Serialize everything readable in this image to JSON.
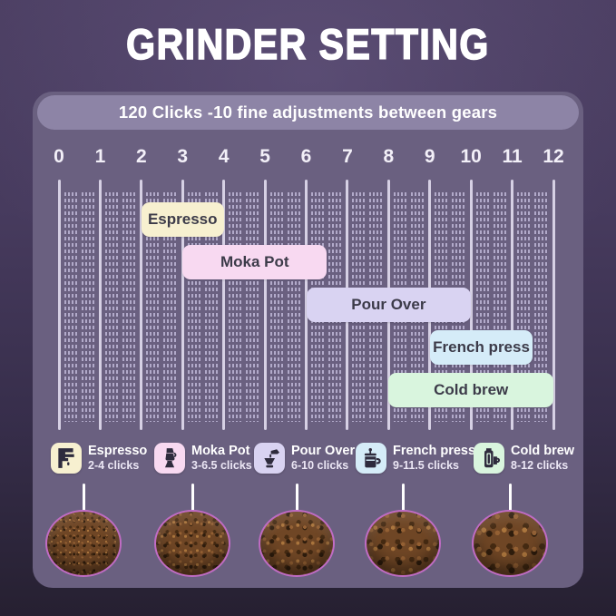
{
  "title": "GRINDER SETTING",
  "banner": "120 Clicks -10 fine adjustments between gears",
  "colors": {
    "background_top": "#4c3f63",
    "background_bottom": "#262031",
    "panel": "#6a6080",
    "pill": "#8d84a6",
    "tick_major": "#d6d0e4",
    "tick_fine": "#b2aaca",
    "band_text": "#3c3b49",
    "legend_text": "#ffffff",
    "circle_border": "#c06cc4"
  },
  "chart_data": {
    "type": "bar",
    "variant": "horizontal-range-bands",
    "title": "GRINDER SETTING",
    "subtitle": "120 Clicks -10 fine adjustments between gears",
    "xlim": [
      0,
      12
    ],
    "axis_ticks": [
      0,
      1,
      2,
      3,
      4,
      5,
      6,
      7,
      8,
      9,
      10,
      11,
      12
    ],
    "fine_tick_clusters_per_gear": 2,
    "fine_ticks_per_cluster": 4,
    "series": [
      {
        "name": "Espresso",
        "start": 2,
        "end": 4,
        "range_label": "2-4 clicks",
        "color": "#f7f0d0"
      },
      {
        "name": "Moka Pot",
        "start": 3,
        "end": 6.5,
        "range_label": "3-6.5 clicks",
        "color": "#f8d9f1"
      },
      {
        "name": "Pour Over",
        "start": 6,
        "end": 10,
        "range_label": "6-10 clicks",
        "color": "#d9d3f2"
      },
      {
        "name": "French press",
        "start": 9,
        "end": 11.5,
        "range_label": "9-11.5 clicks",
        "color": "#d5ecf8"
      },
      {
        "name": "Cold brew",
        "start": 8,
        "end": 12,
        "range_label": "8-12 clicks",
        "color": "#d9f5de"
      }
    ]
  },
  "legend": {
    "items": [
      {
        "name": "Espresso",
        "clicks": "2-4 clicks",
        "icon": "espresso-machine-icon",
        "color": "#f7f0d0"
      },
      {
        "name": "Moka Pot",
        "clicks": "3-6.5 clicks",
        "icon": "moka-pot-icon",
        "color": "#f8d9f1"
      },
      {
        "name": "Pour Over",
        "clicks": "6-10 clicks",
        "icon": "pour-over-icon",
        "color": "#d9d3f2"
      },
      {
        "name": "French press",
        "clicks": "9-11.5 clicks",
        "icon": "french-press-icon",
        "color": "#d5ecf8"
      },
      {
        "name": "Cold brew",
        "clicks": "8-12 clicks",
        "icon": "cold-brew-icon",
        "color": "#d9f5de"
      }
    ]
  },
  "grind_photos": [
    {
      "name": "espresso-grounds-photo",
      "coarseness": 1.0
    },
    {
      "name": "moka-pot-grounds-photo",
      "coarseness": 1.3
    },
    {
      "name": "pour-over-grounds-photo",
      "coarseness": 1.65
    },
    {
      "name": "french-press-grounds-photo",
      "coarseness": 1.95
    },
    {
      "name": "cold-brew-grounds-photo",
      "coarseness": 2.25
    }
  ]
}
